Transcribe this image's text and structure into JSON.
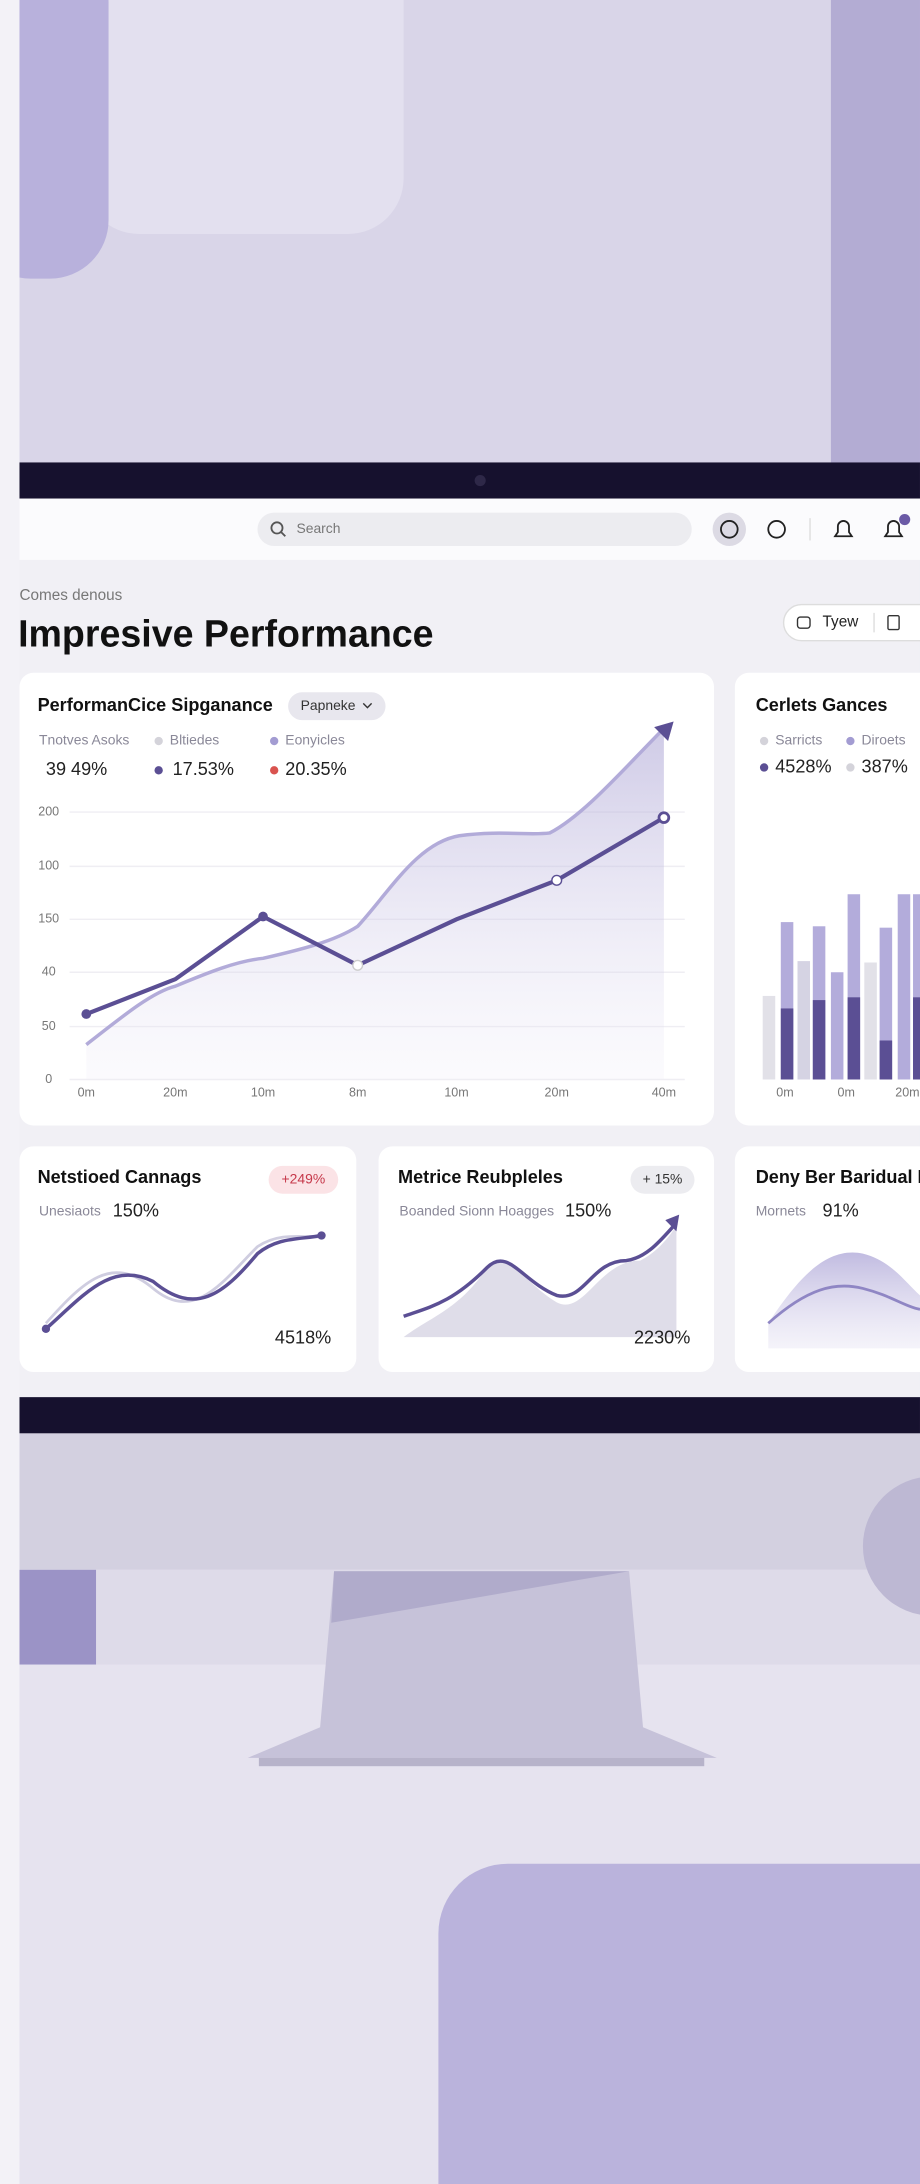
{
  "nav": {
    "search": "Search"
  },
  "header": {
    "breadcrumb": "Comes denous",
    "title": "Impresive Performance",
    "button": "Tyew"
  },
  "cards": [
    {
      "title": "PerformanCice Sipganance",
      "dropdown": "Papneke",
      "legend": [
        {
          "label": "Tnotves Asoks",
          "value": "39 49%"
        },
        {
          "label": "Bltiedes",
          "value": "17.53%"
        },
        {
          "label": "Eonyicles",
          "value": "20.35%"
        }
      ],
      "y_axis": [
        "200",
        "100",
        "150",
        "40",
        "50",
        "0"
      ],
      "x_axis": [
        "0m",
        "20m",
        "10m",
        "8m",
        "10m",
        "20m",
        "40m"
      ]
    },
    {
      "title": "Cerlets Gances",
      "legend": [
        {
          "label": "Sarricts",
          "value": "4528%"
        },
        {
          "label": "Diroets",
          "value": "387%"
        }
      ],
      "x_axis": [
        "0m",
        "0m",
        "20m"
      ]
    },
    {
      "title": "Netstioed Cannags",
      "badge": "+249%",
      "label": "Unesiaots",
      "value": "150%",
      "total": "4518%"
    },
    {
      "title": "Metrice Reubpleles",
      "badge": "+ 15%",
      "label": "Boanded Sionn Hoagges",
      "value": "150%",
      "total": "2230%"
    },
    {
      "title": "Deny Ber Baridual R",
      "label": "Mornets",
      "value": "91%"
    }
  ]
}
